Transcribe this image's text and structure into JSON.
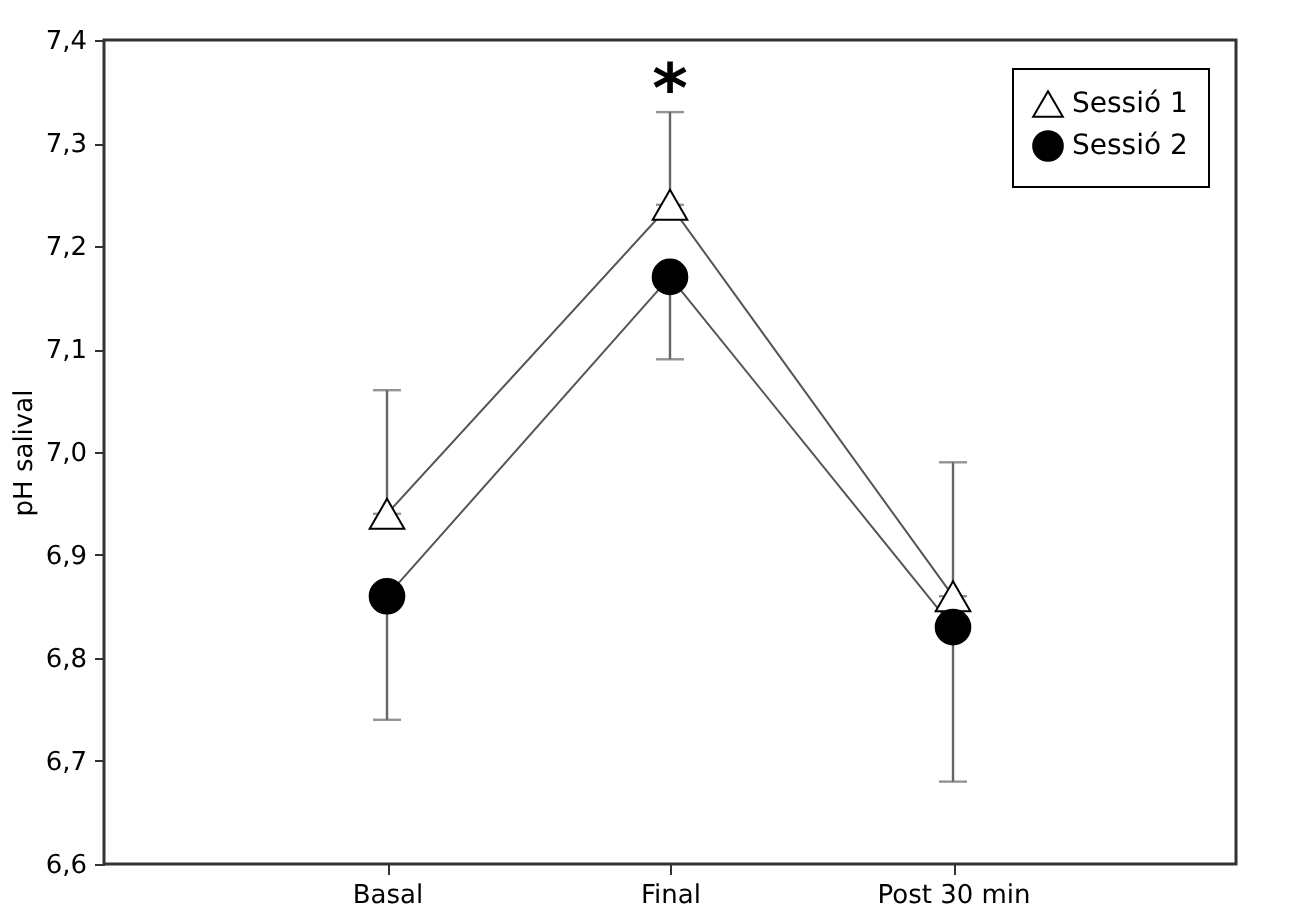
{
  "chart_data": {
    "type": "line",
    "ylabel": "pH salival",
    "categories": [
      "Basal",
      "Final",
      "Post 30 min"
    ],
    "ylim": [
      6.6,
      7.4
    ],
    "yticks": [
      {
        "value": 6.6,
        "label": "6,6"
      },
      {
        "value": 6.7,
        "label": "6,7"
      },
      {
        "value": 6.8,
        "label": "6,8"
      },
      {
        "value": 6.9,
        "label": "6,9"
      },
      {
        "value": 7.0,
        "label": "7,0"
      },
      {
        "value": 7.1,
        "label": "7,1"
      },
      {
        "value": 7.2,
        "label": "7,2"
      },
      {
        "value": 7.3,
        "label": "7,3"
      },
      {
        "value": 7.4,
        "label": "7,4"
      }
    ],
    "series": [
      {
        "name": "Sessió 1",
        "color": "#ffffff",
        "marker": "triangle",
        "values": [
          6.94,
          7.24,
          6.86
        ],
        "errors": [
          [
            6.94,
            7.06
          ],
          [
            7.24,
            7.33
          ],
          [
            6.86,
            6.99
          ]
        ]
      },
      {
        "name": "Sessió 2",
        "color": "#000000",
        "marker": "circle",
        "values": [
          6.86,
          7.17,
          6.83
        ],
        "errors": [
          [
            6.74,
            6.86
          ],
          [
            7.09,
            7.17
          ],
          [
            6.68,
            6.83
          ]
        ]
      }
    ],
    "annotations": [
      "*"
    ],
    "legend": "top right",
    "grid": false
  }
}
